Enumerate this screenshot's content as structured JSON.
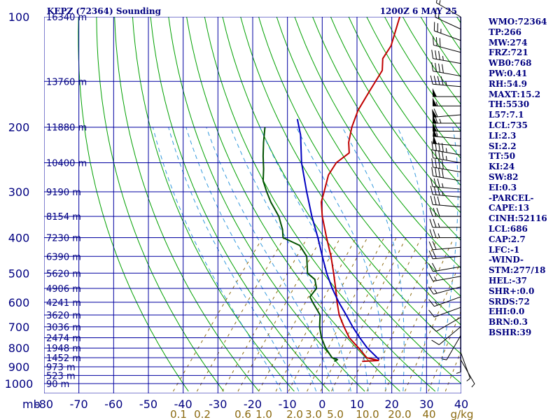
{
  "header": {
    "station": "KEPZ (72364) Sounding",
    "time": "1200Z  6 MAY 25"
  },
  "colors": {
    "grid": "#0000a0",
    "isotherm": "#000080",
    "dry_adiabat": "#00a000",
    "moist_adiabat": "#3399dd",
    "mixing_ratio": "#8b6a10",
    "temperature": "#c00000",
    "dewpoint": "#005000",
    "parcel": "#0000c0",
    "wind": "#000000"
  },
  "chart_data": {
    "type": "line",
    "title": "KEPZ (72364) Sounding",
    "subtitle": "1200Z  6 MAY 25",
    "xlabel": "",
    "ylabel": "mb",
    "y_scale": "log",
    "xlim": [
      -80,
      40
    ],
    "ylim": [
      1000,
      100
    ],
    "pressure_ticks": [
      "100",
      "200",
      "300",
      "400",
      "500",
      "600",
      "700",
      "800",
      "900",
      "1000"
    ],
    "temperature_ticks": [
      "-80",
      "-70",
      "-60",
      "-50",
      "-40",
      "-30",
      "-20",
      "-10",
      "0",
      "10",
      "20",
      "30",
      "40"
    ],
    "mixing_ratio_ticks": [
      "0.1",
      "0.2",
      "0.6",
      "1.0",
      "2.0",
      "3.0",
      "5.0",
      "10.0",
      "20.0",
      "40",
      "g/kg"
    ],
    "height_labels": [
      {
        "p": 100,
        "text": "16340 m"
      },
      {
        "p": 150,
        "text": "13760 m"
      },
      {
        "p": 200,
        "text": "11880 m"
      },
      {
        "p": 250,
        "text": "10400 m"
      },
      {
        "p": 300,
        "text": "9190 m"
      },
      {
        "p": 350,
        "text": "8154 m"
      },
      {
        "p": 400,
        "text": "7230 m"
      },
      {
        "p": 450,
        "text": "6390 m"
      },
      {
        "p": 500,
        "text": "5620 m"
      },
      {
        "p": 550,
        "text": "4906 m"
      },
      {
        "p": 600,
        "text": "4241 m"
      },
      {
        "p": 650,
        "text": "3620 m"
      },
      {
        "p": 700,
        "text": "3036 m"
      },
      {
        "p": 750,
        "text": "2474 m"
      },
      {
        "p": 800,
        "text": "1948 m"
      },
      {
        "p": 850,
        "text": "1452 m"
      },
      {
        "p": 900,
        "text": "973 m"
      },
      {
        "p": 950,
        "text": "523 m"
      },
      {
        "p": 1000,
        "text": "90 m"
      }
    ],
    "series": [
      {
        "key": "temperature",
        "points": [
          [
            870,
            6.5
          ],
          [
            865,
            11.0
          ],
          [
            850,
            7.0
          ],
          [
            800,
            2.5
          ],
          [
            750,
            -2.5
          ],
          [
            700,
            -6.5
          ],
          [
            650,
            -10.5
          ],
          [
            600,
            -14.0
          ],
          [
            550,
            -17.5
          ],
          [
            500,
            -21.5
          ],
          [
            450,
            -26.0
          ],
          [
            400,
            -31.5
          ],
          [
            350,
            -37.5
          ],
          [
            320,
            -41.0
          ],
          [
            300,
            -42.5
          ],
          [
            270,
            -45.0
          ],
          [
            250,
            -45.5
          ],
          [
            235,
            -44.0
          ],
          [
            220,
            -46.5
          ],
          [
            200,
            -49.0
          ],
          [
            180,
            -51.0
          ],
          [
            160,
            -52.0
          ],
          [
            140,
            -53.0
          ],
          [
            130,
            -55.5
          ],
          [
            120,
            -56.0
          ],
          [
            100,
            -60.0
          ]
        ]
      },
      {
        "key": "dewpoint",
        "points": [
          [
            870,
            -1.5
          ],
          [
            860,
            -1.0
          ],
          [
            850,
            -3.0
          ],
          [
            800,
            -7.0
          ],
          [
            750,
            -10.5
          ],
          [
            700,
            -13.5
          ],
          [
            650,
            -16.0
          ],
          [
            600,
            -21.0
          ],
          [
            580,
            -23.0
          ],
          [
            550,
            -23.0
          ],
          [
            520,
            -25.5
          ],
          [
            500,
            -29.0
          ],
          [
            450,
            -33.0
          ],
          [
            420,
            -37.5
          ],
          [
            400,
            -44.0
          ],
          [
            380,
            -46.0
          ],
          [
            350,
            -50.0
          ],
          [
            320,
            -55.5
          ],
          [
            300,
            -59.0
          ],
          [
            280,
            -62.5
          ],
          [
            260,
            -65.0
          ],
          [
            240,
            -68.0
          ],
          [
            220,
            -71.0
          ],
          [
            200,
            -74.0
          ]
        ]
      },
      {
        "key": "parcel",
        "points": [
          [
            860,
            11.0
          ],
          [
            800,
            5.0
          ],
          [
            750,
            0.5
          ],
          [
            700,
            -4.0
          ],
          [
            650,
            -8.5
          ],
          [
            600,
            -13.5
          ],
          [
            550,
            -18.5
          ],
          [
            500,
            -23.5
          ],
          [
            450,
            -28.5
          ],
          [
            400,
            -34.0
          ],
          [
            350,
            -40.5
          ],
          [
            300,
            -47.5
          ],
          [
            250,
            -55.5
          ],
          [
            210,
            -62.0
          ],
          [
            190,
            -66.5
          ]
        ]
      }
    ],
    "wind_barbs": [
      {
        "p": 100,
        "dir": 300,
        "spd": 15
      },
      {
        "p": 108,
        "dir": 295,
        "spd": 20
      },
      {
        "p": 116,
        "dir": 290,
        "spd": 25
      },
      {
        "p": 125,
        "dir": 285,
        "spd": 30
      },
      {
        "p": 134,
        "dir": 280,
        "spd": 35
      },
      {
        "p": 145,
        "dir": 280,
        "spd": 40
      },
      {
        "p": 155,
        "dir": 275,
        "spd": 45
      },
      {
        "p": 165,
        "dir": 270,
        "spd": 50
      },
      {
        "p": 175,
        "dir": 270,
        "spd": 55
      },
      {
        "p": 185,
        "dir": 265,
        "spd": 60
      },
      {
        "p": 195,
        "dir": 270,
        "spd": 65
      },
      {
        "p": 205,
        "dir": 270,
        "spd": 60
      },
      {
        "p": 215,
        "dir": 275,
        "spd": 55
      },
      {
        "p": 225,
        "dir": 275,
        "spd": 50
      },
      {
        "p": 238,
        "dir": 280,
        "spd": 45
      },
      {
        "p": 250,
        "dir": 280,
        "spd": 45
      },
      {
        "p": 265,
        "dir": 280,
        "spd": 40
      },
      {
        "p": 280,
        "dir": 280,
        "spd": 40
      },
      {
        "p": 295,
        "dir": 275,
        "spd": 35
      },
      {
        "p": 310,
        "dir": 275,
        "spd": 35
      },
      {
        "p": 330,
        "dir": 275,
        "spd": 30
      },
      {
        "p": 350,
        "dir": 270,
        "spd": 30
      },
      {
        "p": 375,
        "dir": 270,
        "spd": 25
      },
      {
        "p": 400,
        "dir": 270,
        "spd": 25
      },
      {
        "p": 425,
        "dir": 265,
        "spd": 20
      },
      {
        "p": 450,
        "dir": 265,
        "spd": 20
      },
      {
        "p": 480,
        "dir": 260,
        "spd": 20
      },
      {
        "p": 510,
        "dir": 260,
        "spd": 15
      },
      {
        "p": 545,
        "dir": 255,
        "spd": 15
      },
      {
        "p": 580,
        "dir": 250,
        "spd": 15
      },
      {
        "p": 620,
        "dir": 250,
        "spd": 10
      },
      {
        "p": 660,
        "dir": 240,
        "spd": 10
      },
      {
        "p": 700,
        "dir": 230,
        "spd": 10
      },
      {
        "p": 740,
        "dir": 210,
        "spd": 5
      },
      {
        "p": 780,
        "dir": 180,
        "spd": 5
      },
      {
        "p": 820,
        "dir": 160,
        "spd": 5
      },
      {
        "p": 860,
        "dir": 150,
        "spd": 5
      }
    ]
  },
  "indices": [
    "WMO:72364",
    "TP:266",
    "MW:274",
    "FRZ:721",
    "WB0:768",
    "PW:0.41",
    "RH:54.9",
    "MAXT:15.2",
    "TH:5530",
    "L57:7.1",
    "LCL:735",
    "LI:2.3",
    "SI:2.2",
    "TT:50",
    "KI:24",
    "SW:82",
    "EI:0.3",
    "-PARCEL-",
    "CAPE:13",
    "CINH:52116",
    "LCL:686",
    "CAP:2.7",
    "LFC:-1",
    "-WIND-",
    "STM:277/18",
    "HEL:-37",
    "SHR+:0.0",
    "SRDS:72",
    "EHI:0.0",
    "BRN:0.3",
    "BSHR:39"
  ]
}
